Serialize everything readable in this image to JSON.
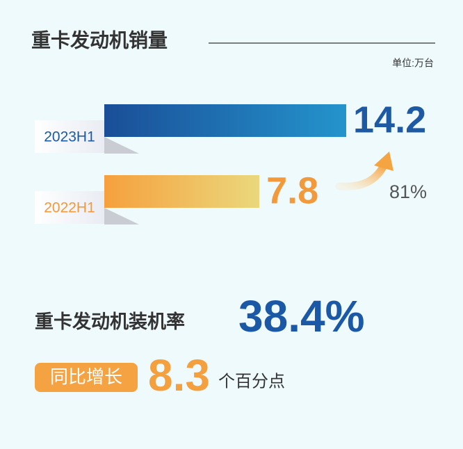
{
  "chart_data": {
    "type": "bar",
    "orientation": "horizontal",
    "title": "重卡发动机销量",
    "unit": "单位:万台",
    "categories": [
      "2023H1",
      "2022H1"
    ],
    "values": [
      14.2,
      7.8
    ],
    "bar_gradients": [
      [
        "#1a4e97",
        "#2494cc"
      ],
      [
        "#f6a03e",
        "#ead87c"
      ]
    ],
    "label_colors": [
      "#1d5aa3",
      "#f29a3b"
    ],
    "growth": "81%"
  },
  "stats": {
    "rate_title": "重卡发动机装机率",
    "rate": "38.4%",
    "change_label": "同比增长",
    "change": "8.3",
    "change_unit": "个百分点"
  }
}
